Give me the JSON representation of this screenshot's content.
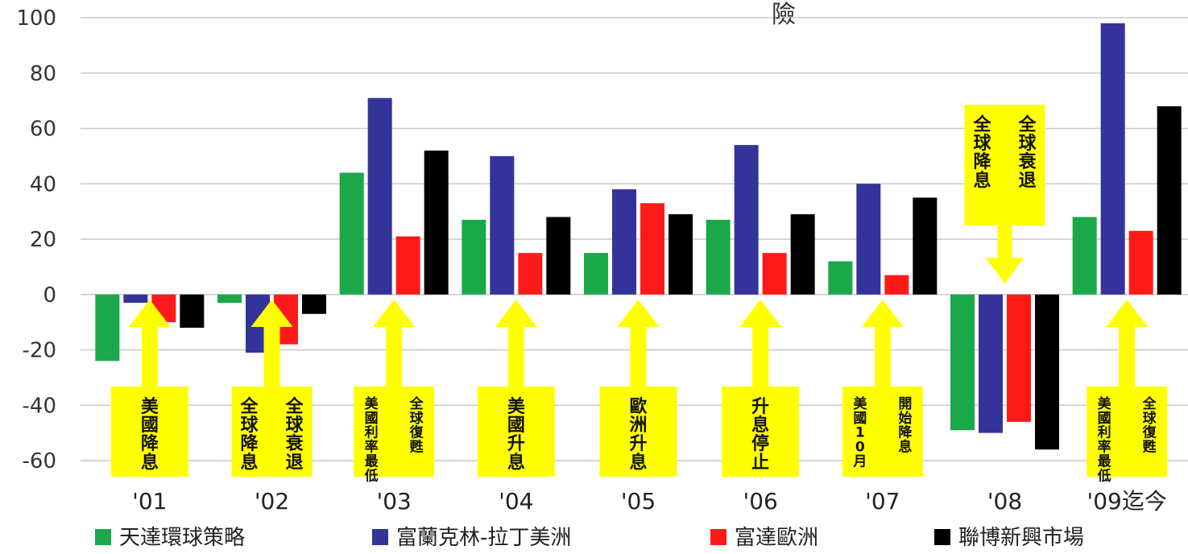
{
  "top_text": "險",
  "chart_data": {
    "type": "bar",
    "categories": [
      "'01",
      "'02",
      "'03",
      "'04",
      "'05",
      "'06",
      "'07",
      "'08",
      "'09迄今"
    ],
    "yticks": [
      "100",
      "80",
      "60",
      "40",
      "20",
      "0",
      "-20",
      "-40",
      "-60"
    ],
    "ylim": [
      -60,
      100
    ],
    "grid": true,
    "legend_position": "bottom",
    "series": [
      {
        "name": "天達環球策略",
        "color": "#1aa84a",
        "values": [
          -24,
          -3,
          44,
          27,
          15,
          27,
          12,
          -49,
          28
        ]
      },
      {
        "name": "富蘭克林-拉丁美洲",
        "color": "#33339a",
        "values": [
          -3,
          -21,
          71,
          50,
          38,
          54,
          40,
          -50,
          98
        ]
      },
      {
        "name": "富達歐洲",
        "color": "#ff1a1a",
        "values": [
          -10,
          -18,
          21,
          15,
          33,
          15,
          7,
          -46,
          23
        ]
      },
      {
        "name": "聯博新興市場",
        "color": "#000000",
        "values": [
          -12,
          -7,
          52,
          28,
          29,
          29,
          35,
          -56,
          68
        ]
      }
    ],
    "annotations": [
      {
        "category": "'01",
        "columns": [
          "美國降息"
        ]
      },
      {
        "category": "'02",
        "columns": [
          "全球衰退",
          "全球降息"
        ]
      },
      {
        "category": "'03",
        "columns": [
          "全球復甦",
          "美國利率最低"
        ]
      },
      {
        "category": "'04",
        "columns": [
          "美國升息"
        ]
      },
      {
        "category": "'05",
        "columns": [
          "歐洲升息"
        ]
      },
      {
        "category": "'06",
        "columns": [
          "升息停止"
        ]
      },
      {
        "category": "'07",
        "columns": [
          "開始降息",
          "美國10月"
        ]
      },
      {
        "category": "'08",
        "columns": [
          "全球衰退",
          "全球降息"
        ]
      },
      {
        "category": "'09迄今",
        "columns": [
          "全球復甦",
          "美國利率最低"
        ]
      }
    ]
  }
}
